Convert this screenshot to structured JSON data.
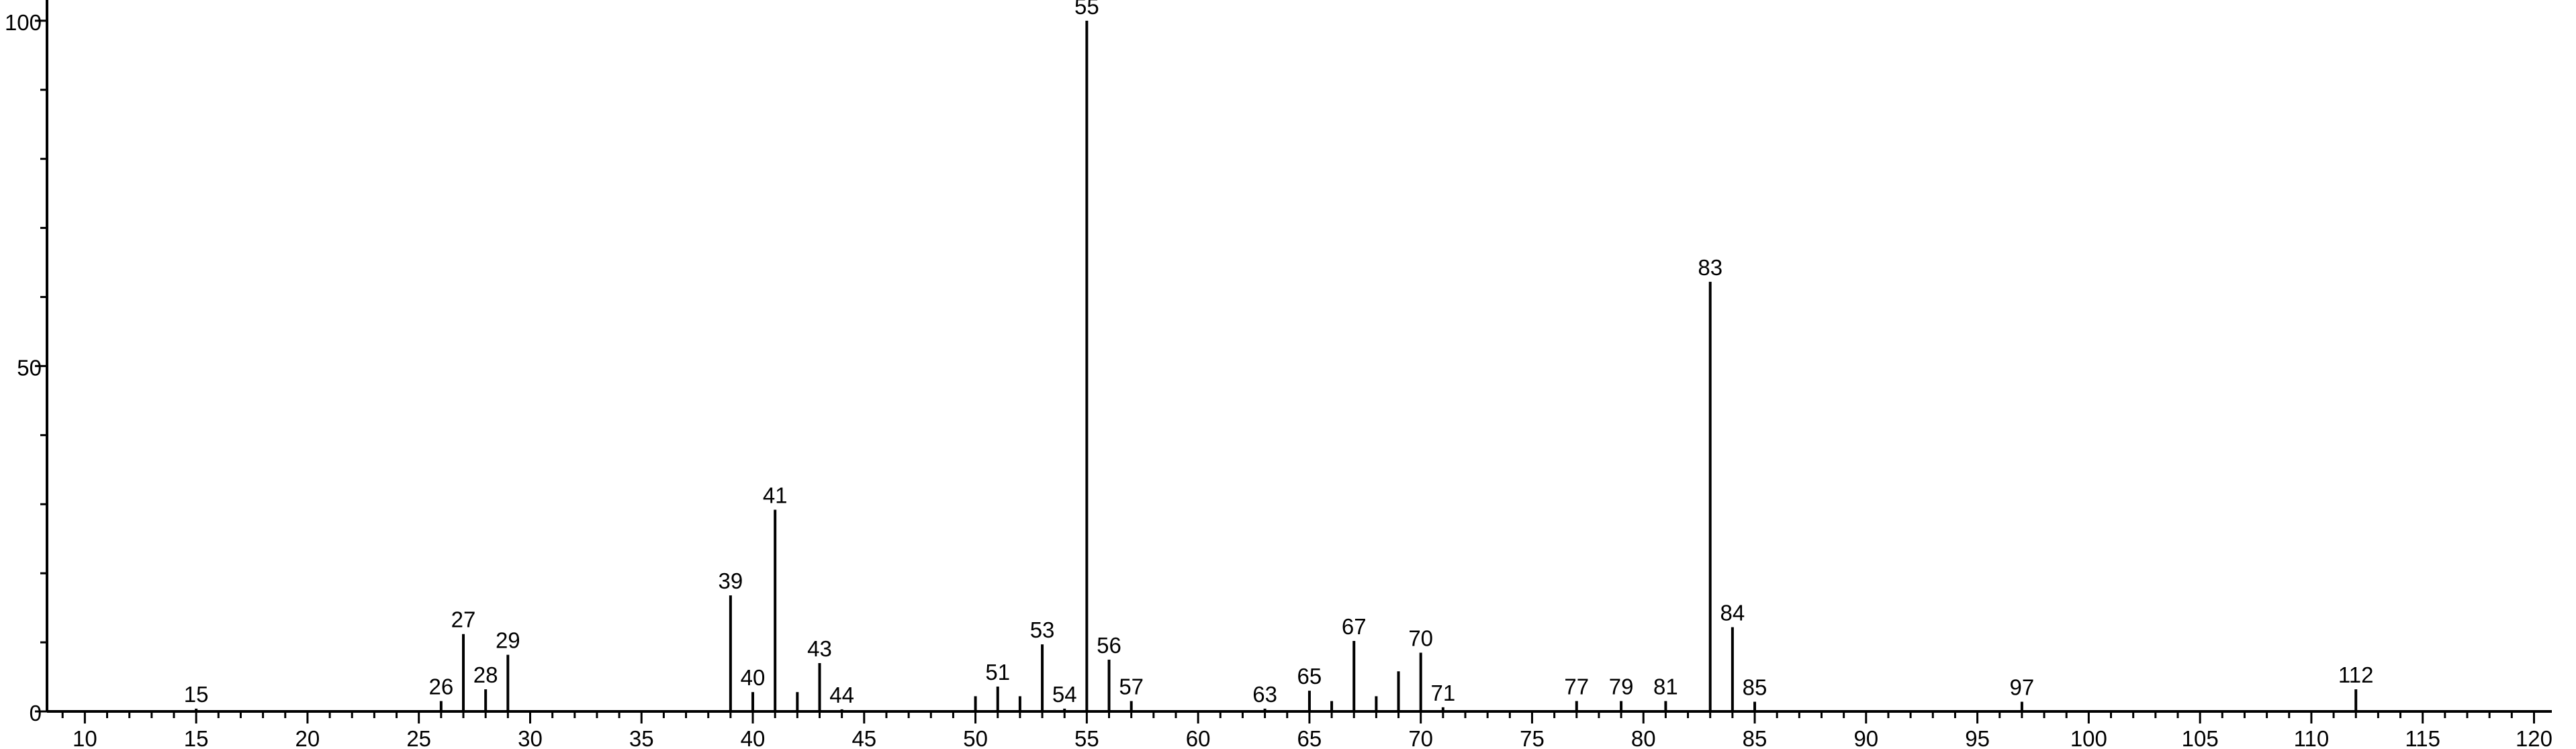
{
  "chart_data": {
    "type": "bar",
    "title": "",
    "xlabel": "",
    "ylabel": "",
    "xlim": [
      8.3,
      120.8
    ],
    "ylim": [
      0,
      103
    ],
    "grid": false,
    "legend": "none",
    "x_ticks": [
      10,
      15,
      20,
      25,
      30,
      35,
      40,
      45,
      50,
      55,
      60,
      65,
      70,
      75,
      80,
      85,
      90,
      95,
      100,
      105,
      110,
      115,
      120
    ],
    "y_ticks": [
      0,
      50,
      100
    ],
    "peaks": [
      {
        "x": 15,
        "y": 0.4,
        "label": "15"
      },
      {
        "x": 26,
        "y": 1.5,
        "label": "26"
      },
      {
        "x": 27,
        "y": 11.2,
        "label": "27"
      },
      {
        "x": 28,
        "y": 3.2,
        "label": "28"
      },
      {
        "x": 29,
        "y": 8.2,
        "label": "29"
      },
      {
        "x": 39,
        "y": 16.8,
        "label": "39"
      },
      {
        "x": 40,
        "y": 2.8,
        "label": "40"
      },
      {
        "x": 41,
        "y": 29.2,
        "label": "41"
      },
      {
        "x": 42,
        "y": 2.8,
        "label": ""
      },
      {
        "x": 43,
        "y": 7.0,
        "label": "43"
      },
      {
        "x": 44,
        "y": 0.3,
        "label": "44"
      },
      {
        "x": 50,
        "y": 2.2,
        "label": ""
      },
      {
        "x": 51,
        "y": 3.6,
        "label": "51"
      },
      {
        "x": 52,
        "y": 2.2,
        "label": ""
      },
      {
        "x": 53,
        "y": 9.7,
        "label": "53"
      },
      {
        "x": 54,
        "y": 0.4,
        "label": "54"
      },
      {
        "x": 55,
        "y": 100.0,
        "label": "55"
      },
      {
        "x": 56,
        "y": 7.5,
        "label": "56"
      },
      {
        "x": 57,
        "y": 1.5,
        "label": "57"
      },
      {
        "x": 63,
        "y": 0.4,
        "label": "63"
      },
      {
        "x": 65,
        "y": 3.0,
        "label": "65"
      },
      {
        "x": 66,
        "y": 1.5,
        "label": ""
      },
      {
        "x": 67,
        "y": 10.2,
        "label": "67"
      },
      {
        "x": 68,
        "y": 2.2,
        "label": ""
      },
      {
        "x": 69,
        "y": 5.8,
        "label": ""
      },
      {
        "x": 70,
        "y": 8.5,
        "label": "70"
      },
      {
        "x": 71,
        "y": 0.6,
        "label": "71"
      },
      {
        "x": 77,
        "y": 1.5,
        "label": "77"
      },
      {
        "x": 79,
        "y": 1.5,
        "label": "79"
      },
      {
        "x": 81,
        "y": 1.5,
        "label": "81"
      },
      {
        "x": 83,
        "y": 62.2,
        "label": "83"
      },
      {
        "x": 84,
        "y": 12.2,
        "label": "84"
      },
      {
        "x": 85,
        "y": 1.4,
        "label": "85"
      },
      {
        "x": 97,
        "y": 1.4,
        "label": "97"
      },
      {
        "x": 112,
        "y": 3.2,
        "label": "112"
      }
    ]
  }
}
